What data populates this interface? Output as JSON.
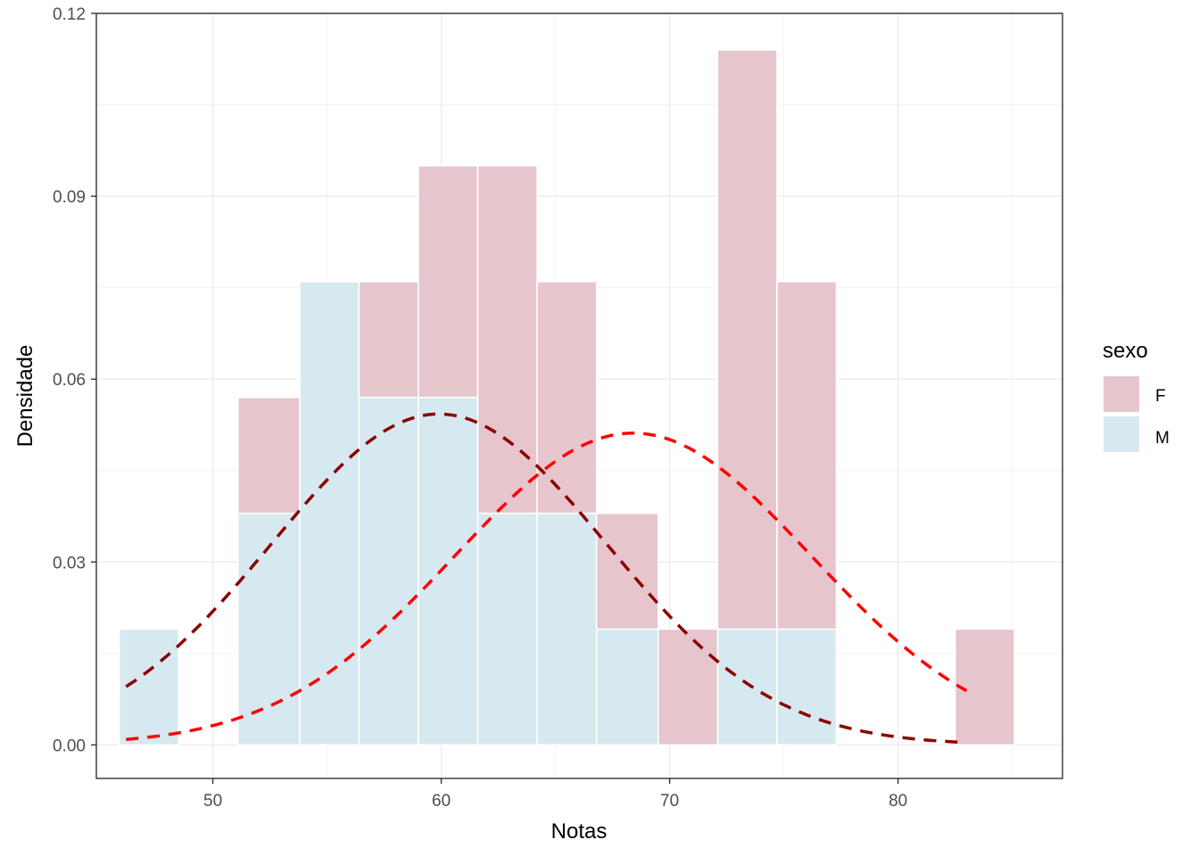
{
  "chart_data": {
    "type": "bar",
    "subtype": "stacked-histogram-with-normal-density-curves",
    "xlabel": "Notas",
    "ylabel": "Densidade",
    "xlim": [
      44.9,
      87.2
    ],
    "ylim": [
      -0.0055,
      0.12
    ],
    "x_ticks": [
      50,
      60,
      70,
      80
    ],
    "x_tick_labels": [
      "50",
      "60",
      "70",
      "80"
    ],
    "y_ticks": [
      0.0,
      0.03,
      0.06,
      0.09,
      0.12
    ],
    "y_tick_labels": [
      "0.00",
      "0.03",
      "0.06",
      "0.09",
      "0.12"
    ],
    "grid": true,
    "legend": {
      "title": "sexo",
      "position": "right",
      "entries": [
        {
          "label": "F",
          "color": "#e6c5cd"
        },
        {
          "label": "M",
          "color": "#d6e9f0"
        }
      ]
    },
    "bin_edges": [
      45.9,
      48.5,
      51.1,
      53.8,
      56.4,
      59.0,
      61.6,
      64.2,
      66.8,
      69.5,
      72.1,
      74.7,
      77.3,
      79.9,
      82.5,
      85.1
    ],
    "series": [
      {
        "name": "M",
        "color": "#d6e9f0",
        "values": [
          0.019,
          0.0,
          0.038,
          0.076,
          0.057,
          0.057,
          0.038,
          0.038,
          0.019,
          0.0,
          0.019,
          0.019,
          0.0,
          0.0,
          0.0
        ]
      },
      {
        "name": "F",
        "color": "#e6c5cd",
        "values": [
          0.0,
          0.0,
          0.019,
          0.0,
          0.019,
          0.038,
          0.057,
          0.038,
          0.019,
          0.019,
          0.095,
          0.057,
          0.0,
          0.0,
          0.019
        ]
      }
    ],
    "curves": [
      {
        "name": "M",
        "color": "#8b0000",
        "style": "dashed",
        "mean": 59.9,
        "sd": 7.35,
        "x_range": [
          46.2,
          82.6
        ]
      },
      {
        "name": "F",
        "color": "#ff0000",
        "style": "dashed",
        "mean": 68.4,
        "sd": 7.8,
        "x_range": [
          46.2,
          83.0
        ]
      }
    ]
  }
}
